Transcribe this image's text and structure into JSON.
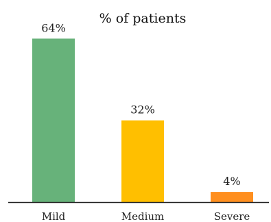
{
  "chart_data": {
    "type": "bar",
    "title": "% of patients",
    "categories": [
      "Mild",
      "Medium",
      "Severe"
    ],
    "values": [
      64,
      32,
      4
    ],
    "value_labels": [
      "64%",
      "32%",
      "4%"
    ],
    "colors": [
      "#67b27a",
      "#ffbf00",
      "#ff8f1f"
    ],
    "ylim": [
      0,
      70
    ],
    "grid": false,
    "axes": {
      "show_x_axis_line": true,
      "show_y_axis": false
    }
  }
}
